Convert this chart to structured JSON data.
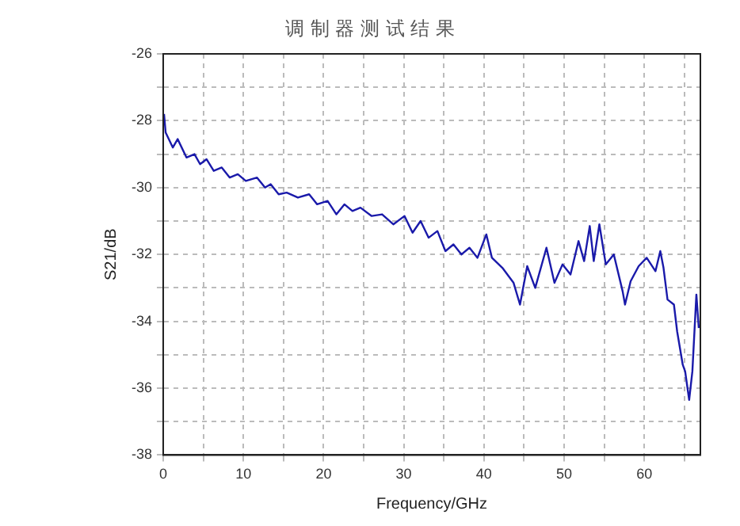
{
  "chart_data": {
    "type": "line",
    "title": "调 制 器 测 试 结 果",
    "xlabel": "Frequency/GHz",
    "ylabel": "S21/dB",
    "xlim": [
      0,
      67
    ],
    "ylim": [
      -38,
      -26
    ],
    "xticks": [
      0,
      {
        "value": 5,
        "label": null
      },
      10,
      {
        "value": 15,
        "label": null
      },
      20,
      {
        "value": 25,
        "label": null
      },
      30,
      {
        "value": 35,
        "label": null
      },
      40,
      {
        "value": 45,
        "label": null
      },
      50,
      {
        "value": 55,
        "label": null
      },
      60,
      {
        "value": 65,
        "label": null
      }
    ],
    "yticks": [
      -38,
      {
        "value": -37,
        "label": null
      },
      -36,
      {
        "value": -35,
        "label": null
      },
      -34,
      {
        "value": -33,
        "label": null
      },
      -32,
      {
        "value": -31,
        "label": null
      },
      -30,
      {
        "value": -29,
        "label": null
      },
      -28,
      {
        "value": -27,
        "label": null
      },
      -26
    ],
    "grid": true,
    "legend": false,
    "marker": "none",
    "line_style": "solid",
    "series": [
      {
        "color": "#1a1aaa",
        "x": [
          0.1,
          0.3,
          1.2,
          1.8,
          2.9,
          3.9,
          4.6,
          5.4,
          6.3,
          7.3,
          8.3,
          9.3,
          10.3,
          11.7,
          12.7,
          13.4,
          14.4,
          15.4,
          16.8,
          18.2,
          19.2,
          20.5,
          21.6,
          22.6,
          23.6,
          24.6,
          26.0,
          27.3,
          28.7,
          30.1,
          31.1,
          32.1,
          33.1,
          34.2,
          35.2,
          36.2,
          37.2,
          38.2,
          39.2,
          40.3,
          41.0,
          42.3,
          43.7,
          44.5,
          45.4,
          46.4,
          47.8,
          48.8,
          49.8,
          50.8,
          51.8,
          52.5,
          53.2,
          53.7,
          54.4,
          55.2,
          56.2,
          57.3,
          57.6,
          58.3,
          59.3,
          60.3,
          61.4,
          62.0,
          62.4,
          62.9,
          63.7,
          64.1,
          64.8,
          65.1,
          65.6,
          66.0,
          66.5,
          66.8
        ],
        "values": [
          -27.8,
          -28.35,
          -28.8,
          -28.55,
          -29.1,
          -29.0,
          -29.3,
          -29.15,
          -29.5,
          -29.4,
          -29.7,
          -29.6,
          -29.8,
          -29.7,
          -30.0,
          -29.9,
          -30.2,
          -30.15,
          -30.3,
          -30.2,
          -30.5,
          -30.4,
          -30.8,
          -30.5,
          -30.7,
          -30.6,
          -30.85,
          -30.8,
          -31.1,
          -30.85,
          -31.35,
          -31.0,
          -31.5,
          -31.3,
          -31.9,
          -31.7,
          -32.0,
          -31.8,
          -32.1,
          -31.4,
          -32.1,
          -32.4,
          -32.85,
          -33.5,
          -32.35,
          -33.0,
          -31.8,
          -32.85,
          -32.3,
          -32.6,
          -31.6,
          -32.2,
          -31.15,
          -32.2,
          -31.1,
          -32.3,
          -32.0,
          -33.1,
          -33.5,
          -32.8,
          -32.35,
          -32.1,
          -32.5,
          -31.9,
          -32.4,
          -33.35,
          -33.5,
          -34.3,
          -35.3,
          -35.5,
          -36.35,
          -35.5,
          -33.2,
          -34.2
        ]
      }
    ]
  }
}
